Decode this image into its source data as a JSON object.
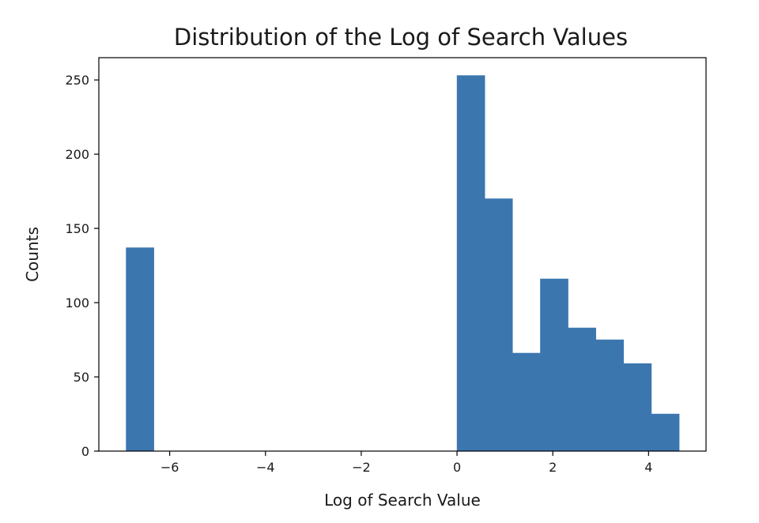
{
  "chart_data": {
    "type": "bar",
    "title": "Distribution of the Log of Search Values",
    "xlabel": "Log of Search Value",
    "ylabel": "Counts",
    "xlim": [
      -7.48,
      5.2
    ],
    "ylim": [
      0,
      265
    ],
    "x_ticks": [
      -6,
      -4,
      -2,
      0,
      2,
      4
    ],
    "x_tick_labels": [
      "−6",
      "−4",
      "−2",
      "0",
      "2",
      "4"
    ],
    "y_ticks": [
      0,
      50,
      100,
      150,
      200,
      250
    ],
    "y_tick_labels": [
      "0",
      "50",
      "100",
      "150",
      "200",
      "250"
    ],
    "bins": [
      {
        "x0": -6.91,
        "x1": -6.33,
        "count": 137
      },
      {
        "x0": 0.0,
        "x1": 0.58,
        "count": 253
      },
      {
        "x0": 0.58,
        "x1": 1.16,
        "count": 170
      },
      {
        "x0": 1.16,
        "x1": 1.74,
        "count": 66
      },
      {
        "x0": 1.74,
        "x1": 2.32,
        "count": 116
      },
      {
        "x0": 2.32,
        "x1": 2.9,
        "count": 83
      },
      {
        "x0": 2.9,
        "x1": 3.48,
        "count": 75
      },
      {
        "x0": 3.48,
        "x1": 4.06,
        "count": 59
      },
      {
        "x0": 4.06,
        "x1": 4.64,
        "count": 25
      }
    ],
    "bar_color": "#3b76af",
    "grid": false,
    "legend": "none"
  }
}
